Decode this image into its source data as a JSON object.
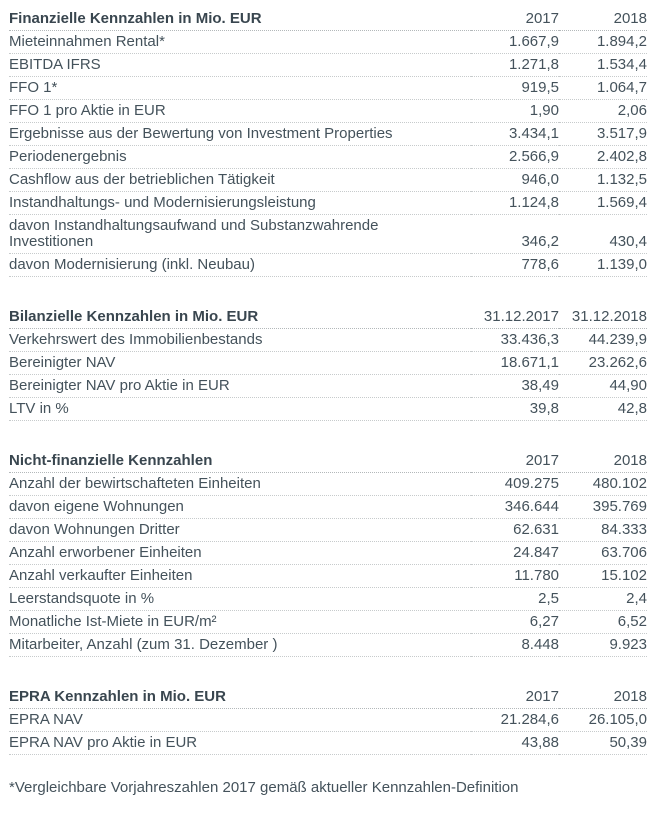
{
  "page": {
    "footnote": "*Vergleichbare Vorjahreszahlen 2017 gemäß aktueller Kennzahlen-Definition"
  },
  "sections": [
    {
      "title": "Finanzielle Kennzahlen in Mio. EUR",
      "columns": [
        "2017",
        "2018"
      ],
      "rows": [
        [
          "Mieteinnahmen Rental*",
          "1.667,9",
          "1.894,2"
        ],
        [
          "EBITDA IFRS",
          "1.271,8",
          "1.534,4"
        ],
        [
          "FFO 1*",
          "919,5",
          "1.064,7"
        ],
        [
          "FFO 1 pro Aktie in EUR",
          "1,90",
          "2,06"
        ],
        [
          "Ergebnisse aus der Bewertung von Investment Properties",
          "3.434,1",
          "3.517,9"
        ],
        [
          "Periodenergebnis",
          "2.566,9",
          "2.402,8"
        ],
        [
          "Cashflow aus der betrieblichen Tätigkeit",
          "946,0",
          "1.132,5"
        ],
        [
          "Instandhaltungs- und Modernisierungsleistung",
          "1.124,8",
          "1.569,4"
        ],
        [
          "davon Instandhaltungsaufwand und Substanzwahrende Investitionen",
          "346,2",
          "430,4"
        ],
        [
          "davon Modernisierung (inkl. Neubau)",
          "778,6",
          "1.139,0"
        ]
      ]
    },
    {
      "title": "Bilanzielle Kennzahlen in Mio. EUR",
      "columns": [
        "31.12.2017",
        "31.12.2018"
      ],
      "rows": [
        [
          "Verkehrswert des Immobilienbestands",
          "33.436,3",
          "44.239,9"
        ],
        [
          "Bereinigter NAV",
          "18.671,1",
          "23.262,6"
        ],
        [
          "Bereinigter NAV pro Aktie in EUR",
          "38,49",
          "44,90"
        ],
        [
          "LTV in %",
          "39,8",
          "42,8"
        ]
      ]
    },
    {
      "title": "Nicht-finanzielle Kennzahlen",
      "columns": [
        "2017",
        "2018"
      ],
      "rows": [
        [
          "Anzahl der bewirtschafteten Einheiten",
          "409.275",
          "480.102"
        ],
        [
          "davon eigene Wohnungen",
          "346.644",
          "395.769"
        ],
        [
          "davon Wohnungen Dritter",
          "62.631",
          "84.333"
        ],
        [
          "Anzahl erworbener Einheiten",
          "24.847",
          "63.706"
        ],
        [
          "Anzahl verkaufter Einheiten",
          "11.780",
          "15.102"
        ],
        [
          "Leerstandsquote in %",
          "2,5",
          "2,4"
        ],
        [
          "Monatliche Ist-Miete in EUR/m²",
          "6,27",
          "6,52"
        ],
        [
          "Mitarbeiter, Anzahl (zum 31. Dezember )",
          "8.448",
          "9.923"
        ]
      ]
    },
    {
      "title": "EPRA Kennzahlen in Mio. EUR",
      "columns": [
        "2017",
        "2018"
      ],
      "rows": [
        [
          "EPRA NAV",
          "21.284,6",
          "26.105,0"
        ],
        [
          "EPRA NAV pro Aktie in EUR",
          "43,88",
          "50,39"
        ]
      ]
    }
  ]
}
